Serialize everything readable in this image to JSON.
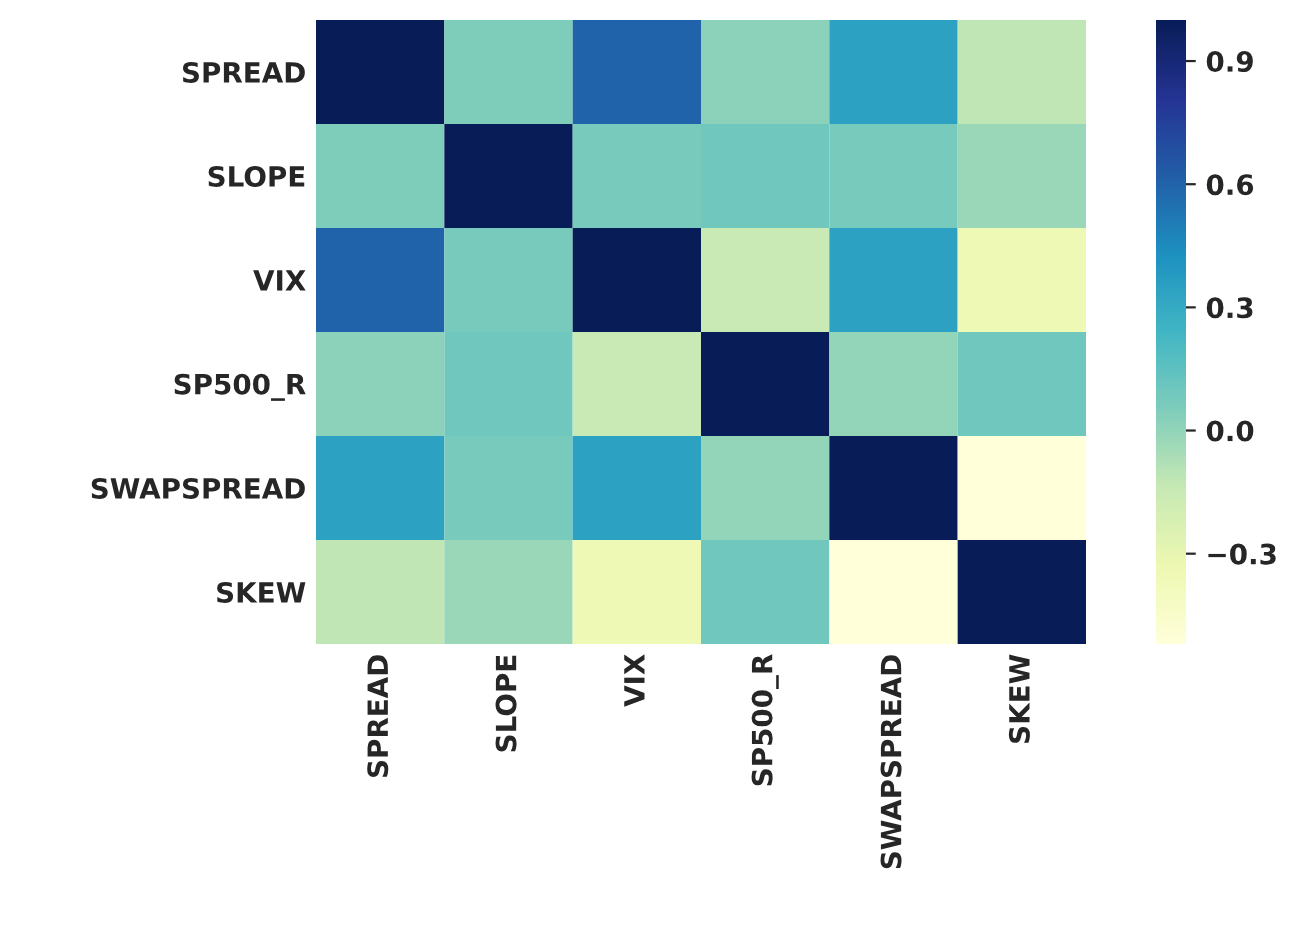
{
  "chart_data": {
    "type": "heatmap",
    "categories": [
      "SPREAD",
      "SLOPE",
      "VIX",
      "SP500_R",
      "SWAPSPREAD",
      "SKEW"
    ],
    "y_categories": [
      "SPREAD",
      "SLOPE",
      "VIX",
      "SP500_R",
      "SWAPSPREAD",
      "SKEW"
    ],
    "cells": [
      [
        1.0,
        0.05,
        0.6,
        0.02,
        0.35,
        -0.12
      ],
      [
        0.05,
        1.0,
        0.07,
        0.1,
        0.07,
        -0.02
      ],
      [
        0.6,
        0.07,
        1.0,
        -0.15,
        0.35,
        -0.35
      ],
      [
        0.02,
        0.1,
        -0.15,
        1.0,
        0.0,
        0.1
      ],
      [
        0.35,
        0.07,
        0.35,
        0.0,
        1.0,
        -0.52
      ],
      [
        -0.12,
        -0.02,
        -0.35,
        0.1,
        -0.52,
        1.0
      ]
    ],
    "clim": [
      -0.52,
      1.0
    ],
    "cticks": [
      {
        "value": -0.3,
        "label": "−0.3"
      },
      {
        "value": 0.0,
        "label": "0.0"
      },
      {
        "value": 0.3,
        "label": "0.3"
      },
      {
        "value": 0.6,
        "label": "0.6"
      },
      {
        "value": 0.9,
        "label": "0.9"
      }
    ]
  }
}
